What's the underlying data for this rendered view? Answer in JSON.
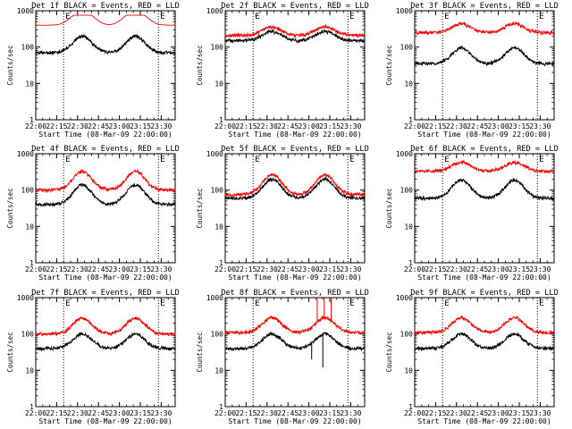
{
  "panel_template": {
    "type": "line",
    "ylabel": "Counts/sec",
    "xlabel": "Start Time (08-Mar-09 22:00:00)",
    "y_scale": "log",
    "ylim": [
      1,
      1000
    ],
    "y_ticks": [
      1,
      10,
      100,
      1000
    ],
    "y_tick_labels": [
      "1",
      "10",
      "100",
      "1000"
    ],
    "x_range_minutes": [
      0,
      100
    ],
    "x_tick_minutes": [
      0,
      15,
      30,
      45,
      60,
      75,
      90
    ],
    "x_tick_labels": [
      "22:00",
      "22:15",
      "22:30",
      "22:45",
      "23:00",
      "23:15",
      "23:30"
    ],
    "series_colors": {
      "events": "#000000",
      "lld": "#ff0000"
    },
    "night_marker_minutes": [
      20,
      88
    ],
    "night_marker_letters": [
      "E",
      "E"
    ]
  },
  "chart_data": [
    {
      "title": "Det 1f BLACK = Events, RED = LLD",
      "events_base": 70,
      "events_peak": 200,
      "lld_base": 400,
      "lld_peak": 750,
      "lld_mode": "clip",
      "markers": [
        "E",
        "E"
      ]
    },
    {
      "title": "Det 2f BLACK = Events, RED = LLD",
      "events_base": 150,
      "events_peak": 270,
      "lld_base": 210,
      "lld_peak": 360,
      "lld_mode": "bump",
      "markers": [
        "E",
        "E"
      ]
    },
    {
      "title": "Det 3f BLACK = Events, RED = LLD",
      "events_base": 35,
      "events_peak": 95,
      "lld_base": 250,
      "lld_peak": 440,
      "lld_mode": "bump",
      "markers": [
        "E",
        "E"
      ]
    },
    {
      "title": "Det 4f BLACK = Events, RED = LLD",
      "events_base": 40,
      "events_peak": 140,
      "lld_base": 100,
      "lld_peak": 330,
      "lld_mode": "bump",
      "markers": [
        "E",
        "E"
      ]
    },
    {
      "title": "Det 5f BLACK = Events, RED = LLD",
      "events_base": 60,
      "events_peak": 200,
      "lld_base": 75,
      "lld_peak": 270,
      "lld_mode": "bump",
      "markers": [
        "E",
        "E"
      ]
    },
    {
      "title": "Det 6f BLACK = Events, RED = LLD",
      "events_base": 60,
      "events_peak": 190,
      "lld_base": 330,
      "lld_peak": 580,
      "lld_mode": "bump",
      "markers": [
        "E",
        "E"
      ]
    },
    {
      "title": "Det 7f BLACK = Events, RED = LLD",
      "events_base": 40,
      "events_peak": 100,
      "lld_base": 100,
      "lld_peak": 270,
      "lld_mode": "bump",
      "markers": [
        "E",
        "E"
      ]
    },
    {
      "title": "Det 8f BLACK = Events, RED = LLD",
      "events_base": 40,
      "events_peak": 100,
      "lld_base": 110,
      "lld_peak": 280,
      "lld_mode": "bump",
      "spikes": [
        {
          "minute": 66,
          "series": "lld",
          "to": 1000
        },
        {
          "minute": 71,
          "series": "lld",
          "to": 1000
        },
        {
          "minute": 76,
          "series": "lld",
          "to": 1000
        },
        {
          "minute": 62,
          "series": "events",
          "to": 20
        },
        {
          "minute": 70,
          "series": "events",
          "to": 12
        }
      ],
      "markers": [
        "E",
        "E"
      ]
    },
    {
      "title": "Det 9f BLACK = Events, RED = LLD",
      "events_base": 40,
      "events_peak": 100,
      "lld_base": 110,
      "lld_peak": 280,
      "lld_mode": "bump",
      "markers": [
        "E",
        "E"
      ]
    }
  ]
}
